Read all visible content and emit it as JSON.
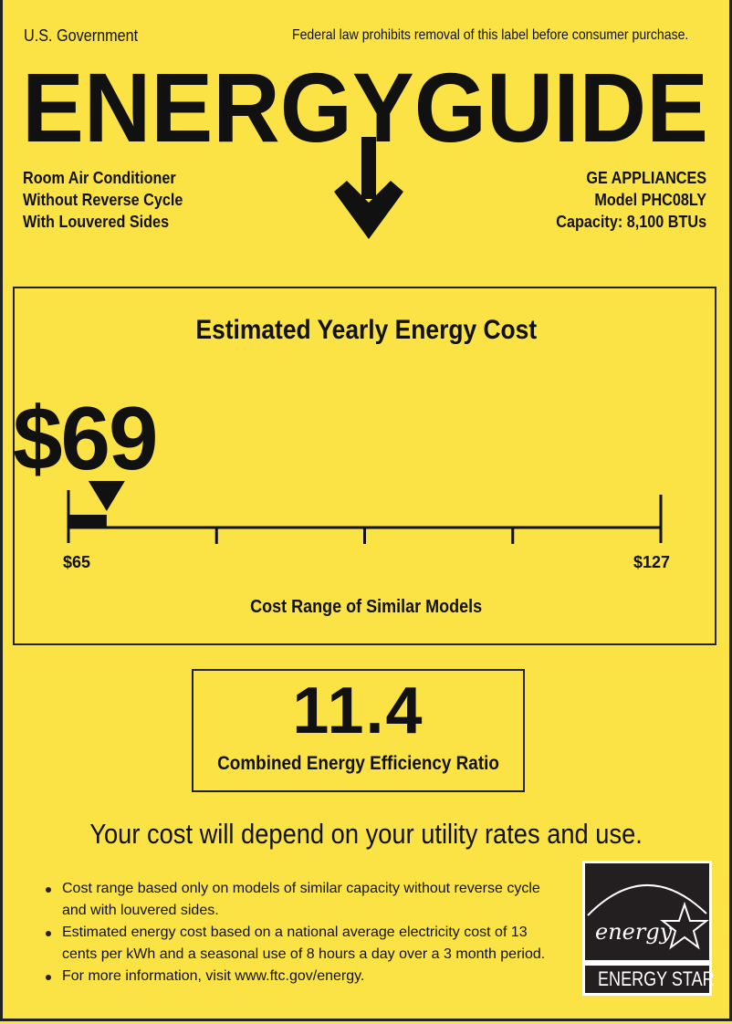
{
  "header": {
    "left": "U.S. Government",
    "right": "Federal law prohibits removal of this label before consumer purchase.",
    "title": "ENERGYGUIDE"
  },
  "product": {
    "lines": [
      "Room Air Conditioner",
      "Without Reverse Cycle",
      "With Louvered Sides"
    ]
  },
  "manufacturer": {
    "name": "GE APPLIANCES",
    "model": "Model PHC08LY",
    "capacity": "Capacity: 8,100 BTUs"
  },
  "cost": {
    "heading": "Estimated Yearly Energy Cost",
    "value": "$69",
    "range_min_label": "$65",
    "range_max_label": "$127",
    "range_min": 65,
    "range_max": 127,
    "current": 69,
    "range_caption": "Cost Range of Similar Models"
  },
  "efficiency": {
    "value": "11.4",
    "label": "Combined Energy Efficiency Ratio"
  },
  "disclaimer": "Your cost will depend on your utility rates and use.",
  "notes": [
    "Cost range based only on models of similar capacity without reverse cycle",
    "and with louvered sides.",
    "Estimated energy cost based on a national average electricity cost of 13",
    "cents per kWh and a seasonal use of 8 hours a day over a 3 month period.",
    "For more information, visit www.ftc.gov/energy."
  ],
  "energy_star": {
    "script": "energy",
    "label": "ENERGY STAR"
  },
  "colors": {
    "background": "#fbe346",
    "ink": "#111111"
  }
}
